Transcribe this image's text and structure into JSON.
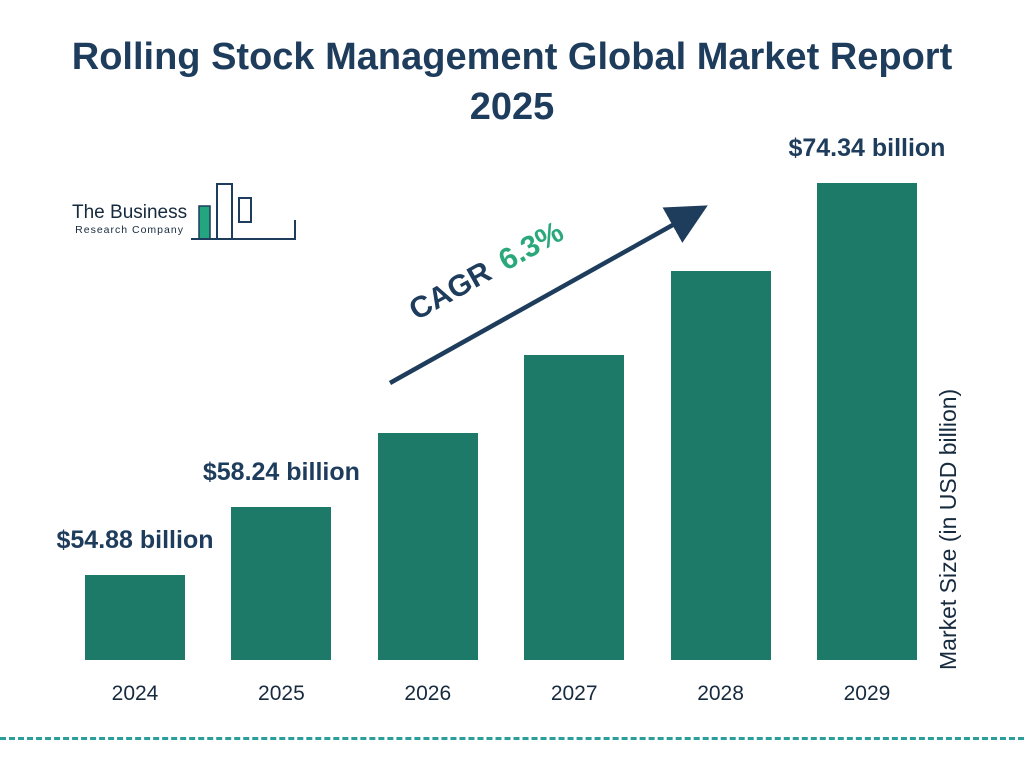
{
  "title": "Rolling Stock Management Global Market Report 2025",
  "logo": {
    "line1": "The Business",
    "line2": "Research Company"
  },
  "annotation": {
    "prefix": "CAGR",
    "value": "6.3%"
  },
  "ylabel": "Market Size (in USD billion)",
  "chart_data": {
    "type": "bar",
    "categories": [
      "2024",
      "2025",
      "2026",
      "2027",
      "2028",
      "2029"
    ],
    "values": [
      54.88,
      58.24,
      61.91,
      65.81,
      69.96,
      74.34
    ],
    "bar_labels": [
      "$54.88 billion",
      "$58.24 billion",
      "",
      "",
      "",
      "$74.34 billion"
    ],
    "title": "Rolling Stock Management Global Market Report 2025",
    "xlabel": "",
    "ylabel": "Market Size (in USD billion)",
    "annotation": "CAGR 6.3%",
    "legend": false,
    "grid": false,
    "colors": {
      "bar": "#1d7a68",
      "title": "#1e3c5c",
      "value_label": "#1e3c5c",
      "cagr_green": "#2aa87c",
      "arrow_navy": "#1e3c5c",
      "dashed_line": "#2a9d9d"
    }
  }
}
